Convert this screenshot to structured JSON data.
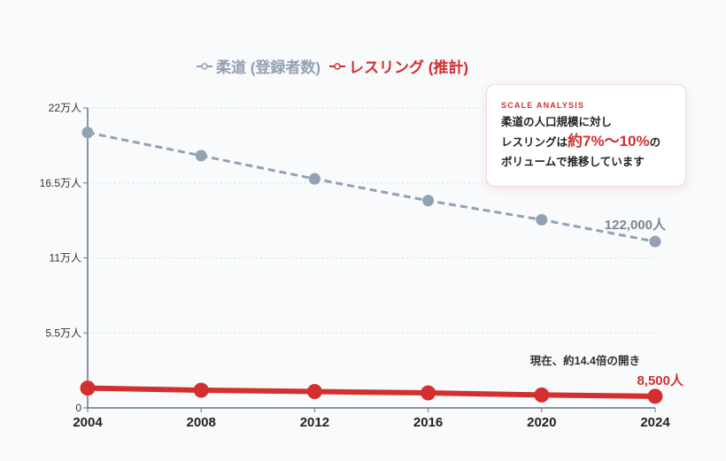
{
  "chart_data": {
    "type": "line",
    "categories": [
      "2004",
      "2008",
      "2012",
      "2016",
      "2020",
      "2024"
    ],
    "series": [
      {
        "name": "柔道 (登録者数)",
        "values": [
          202000,
          185000,
          168000,
          152000,
          138000,
          122000
        ],
        "color": "#94a0b4",
        "style": "dashed"
      },
      {
        "name": "レスリング (推計)",
        "values": [
          14500,
          13000,
          12000,
          11000,
          9500,
          8500
        ],
        "color": "#d32f2f",
        "style": "solid"
      }
    ],
    "ylim": [
      0,
      220000
    ],
    "yticks": [
      0,
      55000,
      110000,
      165000,
      220000
    ],
    "ytick_labels": [
      "0",
      "5.5万人",
      "11万人",
      "16.5万人",
      "22万人"
    ],
    "grid": true,
    "legend": "top-center",
    "annotations": {
      "judo_end": "122,000人",
      "wrestling_end": "8,500人",
      "gap": "現在、約14.4倍の開き"
    }
  },
  "callout": {
    "title": "SCALE ANALYSIS",
    "line1": "柔道の人口規模に対し",
    "line2_pre": "レスリングは",
    "line2_hl": "約7%〜10%",
    "line2_post": "の",
    "line3": "ボリュームで推移しています"
  }
}
